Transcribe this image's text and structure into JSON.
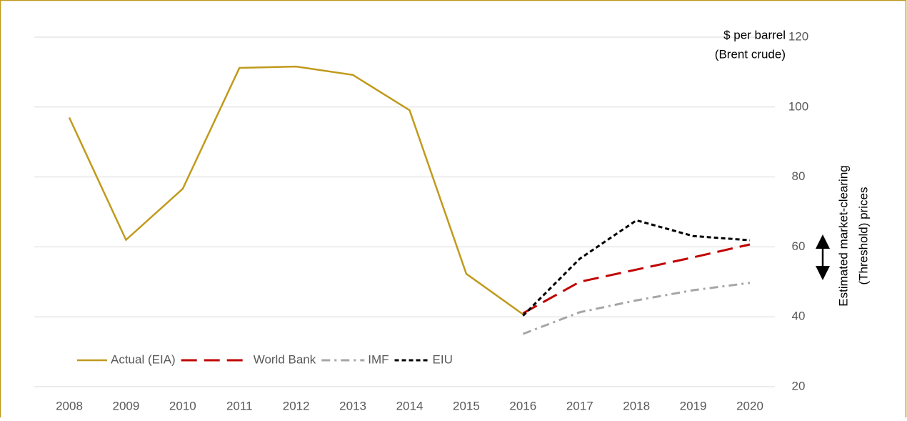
{
  "chart_data": {
    "type": "line",
    "categories": [
      "2008",
      "2009",
      "2010",
      "2011",
      "2012",
      "2013",
      "2014",
      "2015",
      "2016",
      "2017",
      "2018",
      "2019",
      "2020"
    ],
    "series": [
      {
        "name": "Actual (EIA)",
        "color": "#c09a1c",
        "dash": "solid",
        "values": [
          97,
          62,
          76.6,
          111.2,
          111.6,
          109.2,
          99.1,
          52.3,
          40.7,
          null,
          null,
          null,
          null
        ]
      },
      {
        "name": "World Bank",
        "color": "#c00000",
        "dash": "long-dash",
        "values": [
          null,
          null,
          null,
          null,
          null,
          null,
          null,
          null,
          41,
          50,
          53.5,
          57,
          60.7
        ]
      },
      {
        "name": "IMF",
        "color": "#a6a6a6",
        "dash": "dash-dot",
        "values": [
          null,
          null,
          null,
          null,
          null,
          null,
          null,
          null,
          35.1,
          41.3,
          44.7,
          47.6,
          49.7
        ]
      },
      {
        "name": "EIU",
        "color": "#000000",
        "dash": "short-dash",
        "values": [
          null,
          null,
          null,
          null,
          null,
          null,
          null,
          null,
          40.3,
          56.6,
          67.6,
          63.1,
          61.9
        ]
      }
    ],
    "ylim": [
      20,
      120
    ],
    "yticks": [
      20,
      40,
      60,
      80,
      100,
      120
    ],
    "y_label_lines": [
      "$ per barrel",
      "(Brent crude)"
    ],
    "annotation_lines": [
      "Estimated market-clearing",
      "(Threshold) prices"
    ],
    "grid": true,
    "legend": "bottom-left"
  }
}
